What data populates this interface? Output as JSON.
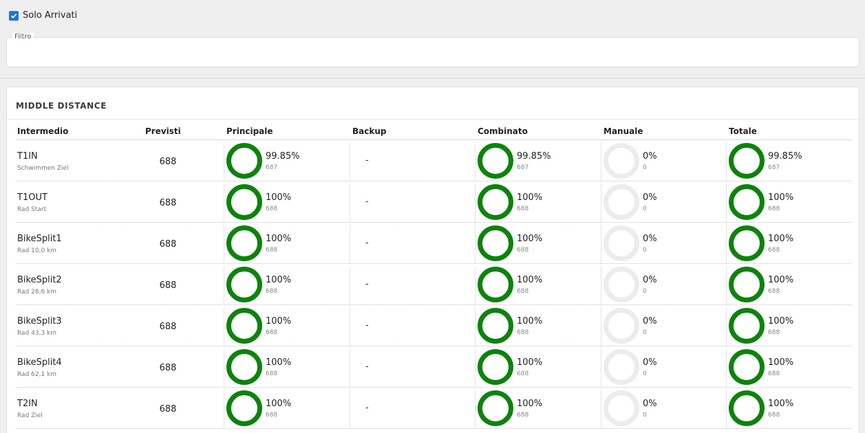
{
  "filter_only_arrivals": {
    "label": "Solo Arrivati",
    "checked": true
  },
  "filter": {
    "legend": "Filtro",
    "value": ""
  },
  "section": {
    "title": "MIDDLE DISTANCE",
    "columns": [
      "Intermedio",
      "Previsti",
      "Principale",
      "Backup",
      "Combinato",
      "Manuale",
      "Totale"
    ],
    "colors": {
      "complete": "#0c830c",
      "empty": "#ececec"
    },
    "rows": [
      {
        "name": "T1IN",
        "sub": "Schwimmen Ziel",
        "previsti": "688",
        "principale": {
          "pct": "99.85%",
          "count": "687",
          "fraction": 0.9985
        },
        "backup": "-",
        "combinato": {
          "pct": "99.85%",
          "count": "687",
          "fraction": 0.9985
        },
        "manuale": {
          "pct": "0%",
          "count": "0",
          "fraction": 0
        },
        "totale": {
          "pct": "99.85%",
          "count": "687",
          "fraction": 0.9985
        }
      },
      {
        "name": "T1OUT",
        "sub": "Rad Start",
        "previsti": "688",
        "principale": {
          "pct": "100%",
          "count": "688",
          "fraction": 1
        },
        "backup": "-",
        "combinato": {
          "pct": "100%",
          "count": "688",
          "fraction": 1
        },
        "manuale": {
          "pct": "0%",
          "count": "0",
          "fraction": 0
        },
        "totale": {
          "pct": "100%",
          "count": "688",
          "fraction": 1
        }
      },
      {
        "name": "BikeSplit1",
        "sub": "Rad 10,0 km",
        "previsti": "688",
        "principale": {
          "pct": "100%",
          "count": "688",
          "fraction": 1
        },
        "backup": "-",
        "combinato": {
          "pct": "100%",
          "count": "688",
          "fraction": 1
        },
        "manuale": {
          "pct": "0%",
          "count": "0",
          "fraction": 0
        },
        "totale": {
          "pct": "100%",
          "count": "688",
          "fraction": 1
        }
      },
      {
        "name": "BikeSplit2",
        "sub": "Rad 28,6 km",
        "previsti": "688",
        "principale": {
          "pct": "100%",
          "count": "688",
          "fraction": 1
        },
        "backup": "-",
        "combinato": {
          "pct": "100%",
          "count": "688",
          "fraction": 1
        },
        "manuale": {
          "pct": "0%",
          "count": "0",
          "fraction": 0
        },
        "totale": {
          "pct": "100%",
          "count": "688",
          "fraction": 1
        }
      },
      {
        "name": "BikeSplit3",
        "sub": "Rad 43,3 km",
        "previsti": "688",
        "principale": {
          "pct": "100%",
          "count": "688",
          "fraction": 1
        },
        "backup": "-",
        "combinato": {
          "pct": "100%",
          "count": "688",
          "fraction": 1
        },
        "manuale": {
          "pct": "0%",
          "count": "0",
          "fraction": 0
        },
        "totale": {
          "pct": "100%",
          "count": "688",
          "fraction": 1
        }
      },
      {
        "name": "BikeSplit4",
        "sub": "Rad 62,1 km",
        "previsti": "688",
        "principale": {
          "pct": "100%",
          "count": "688",
          "fraction": 1
        },
        "backup": "-",
        "combinato": {
          "pct": "100%",
          "count": "688",
          "fraction": 1
        },
        "manuale": {
          "pct": "0%",
          "count": "0",
          "fraction": 0
        },
        "totale": {
          "pct": "100%",
          "count": "688",
          "fraction": 1
        }
      },
      {
        "name": "T2IN",
        "sub": "Rad Ziel",
        "previsti": "688",
        "principale": {
          "pct": "100%",
          "count": "688",
          "fraction": 1
        },
        "backup": "-",
        "combinato": {
          "pct": "100%",
          "count": "688",
          "fraction": 1
        },
        "manuale": {
          "pct": "0%",
          "count": "0",
          "fraction": 0
        },
        "totale": {
          "pct": "100%",
          "count": "688",
          "fraction": 1
        }
      }
    ]
  }
}
